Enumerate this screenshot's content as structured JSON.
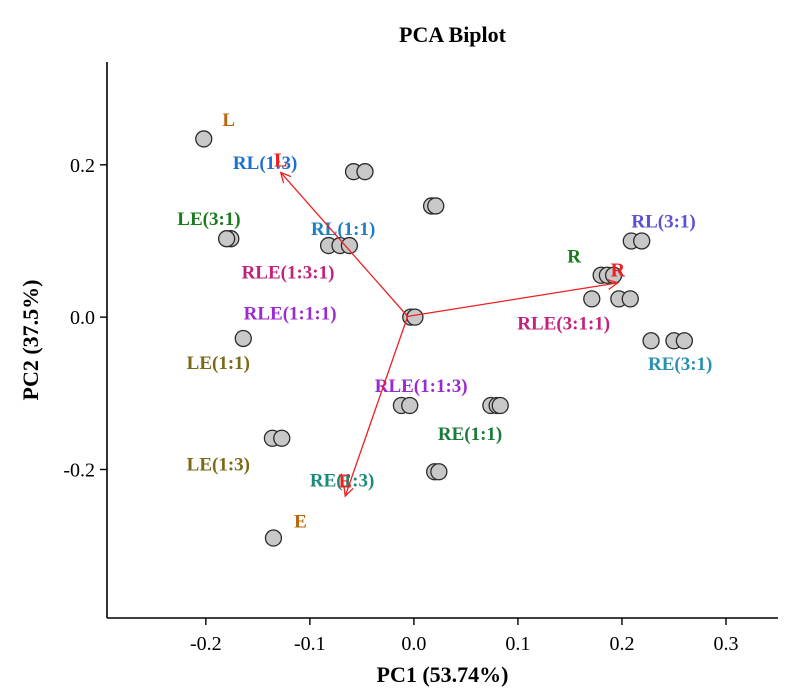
{
  "chart_data": {
    "type": "scatter",
    "title": "PCA Biplot",
    "xlabel": "PC1 (53.74%)",
    "ylabel": "PC2 (37.5%)",
    "xlim": [
      -0.295,
      0.35
    ],
    "ylim": [
      -0.395,
      0.335
    ],
    "xticks": [
      -0.2,
      -0.1,
      0.0,
      0.1,
      0.2,
      0.3
    ],
    "xtick_labels": [
      "-0.2",
      "-0.1",
      "0.0",
      "0.1",
      "0.2",
      "0.3"
    ],
    "yticks": [
      -0.2,
      0.0,
      0.2
    ],
    "ytick_labels": [
      "-0.2",
      "0.0",
      "0.2"
    ],
    "grid": false,
    "legend": "none",
    "point_color": "#c8c8c8",
    "point_edge_color": "#2a2a2a",
    "points": [
      {
        "x": -0.202,
        "y": 0.234
      },
      {
        "x": -0.058,
        "y": 0.191
      },
      {
        "x": -0.047,
        "y": 0.191
      },
      {
        "x": 0.017,
        "y": 0.146
      },
      {
        "x": 0.021,
        "y": 0.146
      },
      {
        "x": -0.176,
        "y": 0.103
      },
      {
        "x": -0.18,
        "y": 0.103
      },
      {
        "x": -0.082,
        "y": 0.094
      },
      {
        "x": -0.071,
        "y": 0.094
      },
      {
        "x": -0.062,
        "y": 0.094
      },
      {
        "x": 0.209,
        "y": 0.1
      },
      {
        "x": 0.219,
        "y": 0.1
      },
      {
        "x": 0.18,
        "y": 0.055
      },
      {
        "x": 0.186,
        "y": 0.055
      },
      {
        "x": 0.192,
        "y": 0.055
      },
      {
        "x": 0.171,
        "y": 0.024
      },
      {
        "x": 0.197,
        "y": 0.024
      },
      {
        "x": 0.208,
        "y": 0.024
      },
      {
        "x": -0.003,
        "y": 0.0
      },
      {
        "x": 0.001,
        "y": 0.0
      },
      {
        "x": -0.164,
        "y": -0.028
      },
      {
        "x": 0.228,
        "y": -0.031
      },
      {
        "x": 0.25,
        "y": -0.031
      },
      {
        "x": 0.26,
        "y": -0.031
      },
      {
        "x": -0.012,
        "y": -0.116
      },
      {
        "x": -0.004,
        "y": -0.116
      },
      {
        "x": 0.074,
        "y": -0.116
      },
      {
        "x": 0.08,
        "y": -0.116
      },
      {
        "x": 0.083,
        "y": -0.116
      },
      {
        "x": -0.136,
        "y": -0.159
      },
      {
        "x": -0.127,
        "y": -0.159
      },
      {
        "x": 0.02,
        "y": -0.203
      },
      {
        "x": 0.024,
        "y": -0.203
      },
      {
        "x": -0.135,
        "y": -0.29
      }
    ],
    "point_labels": [
      {
        "text": "L",
        "x": -0.178,
        "y": 0.26,
        "color": "#b8650b"
      },
      {
        "text": "RL(1:3)",
        "x": -0.143,
        "y": 0.204,
        "color": "#1f6fd0"
      },
      {
        "text": "LE(3:1)",
        "x": -0.197,
        "y": 0.13,
        "color": "#1b7a1b"
      },
      {
        "text": "RL(1:1)",
        "x": -0.068,
        "y": 0.117,
        "color": "#1f7fc0"
      },
      {
        "text": "RLE(1:3:1)",
        "x": -0.121,
        "y": 0.06,
        "color": "#c0247a"
      },
      {
        "text": "RLE(1:1:1)",
        "x": -0.119,
        "y": 0.006,
        "color": "#9a2bd0"
      },
      {
        "text": "LE(1:1)",
        "x": -0.188,
        "y": -0.059,
        "color": "#7a6a18"
      },
      {
        "text": "RLE(1:1:3)",
        "x": 0.007,
        "y": -0.089,
        "color": "#9a2bd0"
      },
      {
        "text": "RE(1:1)",
        "x": 0.054,
        "y": -0.152,
        "color": "#1b7a3a"
      },
      {
        "text": "LE(1:3)",
        "x": -0.188,
        "y": -0.192,
        "color": "#7a6a18"
      },
      {
        "text": "RE(1:3)",
        "x": -0.069,
        "y": -0.213,
        "color": "#1b8a7a"
      },
      {
        "text": "E",
        "x": -0.109,
        "y": -0.267,
        "color": "#b8650b"
      },
      {
        "text": "R",
        "x": 0.154,
        "y": 0.081,
        "color": "#1b7a1b"
      },
      {
        "text": "RL(3:1)",
        "x": 0.24,
        "y": 0.127,
        "color": "#5a4fd8"
      },
      {
        "text": "RLE(3:1:1)",
        "x": 0.144,
        "y": -0.007,
        "color": "#c0247a"
      },
      {
        "text": "RE(3:1)",
        "x": 0.256,
        "y": -0.06,
        "color": "#2a90b0"
      }
    ],
    "loadings": [
      {
        "name": "L",
        "x": -0.128,
        "y": 0.19,
        "label_x": -0.128,
        "label_y": 0.208
      },
      {
        "name": "R",
        "x": 0.196,
        "y": 0.045,
        "label_x": 0.196,
        "label_y": 0.064
      },
      {
        "name": "E",
        "x": -0.066,
        "y": -0.235,
        "label_x": -0.066,
        "label_y": -0.213
      }
    ],
    "loading_origin": [
      -0.006,
      0.001
    ],
    "loading_color": "#ee2020"
  }
}
